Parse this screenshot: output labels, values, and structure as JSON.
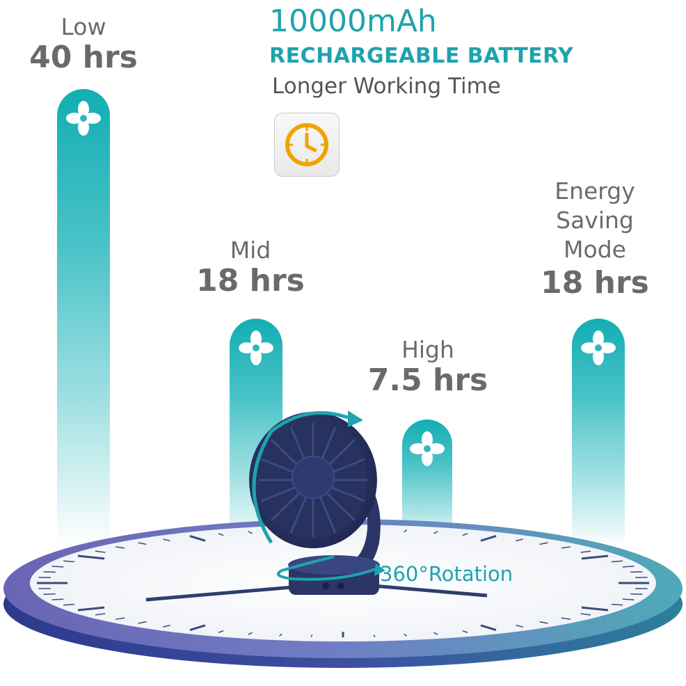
{
  "header": {
    "capacity": "10000mAh",
    "battery": "RECHARGEABLE BATTERY",
    "tagline": "Longer Working Time",
    "icon": "clock-icon",
    "icon_color": "#f0a400"
  },
  "modes": [
    {
      "label": "Low",
      "hours": "40 hrs",
      "icon": "fan-icon"
    },
    {
      "label": "Mid",
      "hours": "18 hrs",
      "icon": "fan-icon"
    },
    {
      "label": "High",
      "hours": "7.5 hrs",
      "icon": "fan-icon"
    },
    {
      "label_lines": [
        "Energy",
        "Saving",
        "Mode"
      ],
      "hours": "18 hrs",
      "icon": "fan-icon"
    }
  ],
  "rotation": {
    "label": "360°Rotation",
    "icon": "rotation-arrow-icon"
  },
  "colors": {
    "accent": "#1fa3ad",
    "bar_top": "#12aeb3",
    "clock_rim": "#2f3f8a",
    "fan_body": "#2b3566"
  }
}
